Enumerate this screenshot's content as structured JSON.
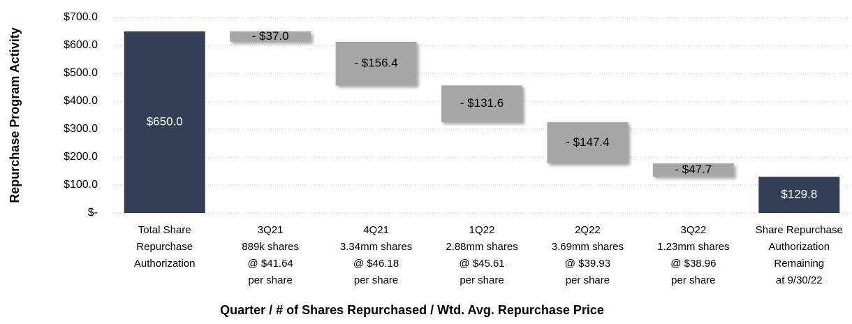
{
  "chart_data": {
    "type": "waterfall",
    "y_axis_label": "Repurchase Program Activity",
    "x_axis_label": "Quarter / # of Shares Repurchased / Wtd. Avg. Repurchase Price",
    "categories": [
      [
        "Total Share",
        "Repurchase",
        "Authorization"
      ],
      [
        "3Q21",
        "889k shares",
        "@ $41.64",
        "per share"
      ],
      [
        "4Q21",
        "3.34mm shares",
        "@ $46.18",
        "per share"
      ],
      [
        "1Q22",
        "2.88mm shares",
        "@ $45.61",
        "per share"
      ],
      [
        "2Q22",
        "3.69mm shares",
        "@ $39.93",
        "per share"
      ],
      [
        "3Q22",
        "1.23mm shares",
        "@ $38.96",
        "per share"
      ],
      [
        "Share Repurchase",
        "Authorization",
        "Remaining",
        "at 9/30/22"
      ]
    ],
    "values": [
      650.0,
      -37.0,
      -156.4,
      -131.6,
      -147.4,
      -47.7,
      129.8
    ],
    "value_labels": [
      "$650.0",
      "- $37.0",
      "- $156.4",
      "- $131.6",
      "- $147.4",
      "- $47.7",
      "$129.8"
    ],
    "colors": [
      "#333f55",
      "#a6a6a6",
      "#a6a6a6",
      "#a6a6a6",
      "#a6a6a6",
      "#a6a6a6",
      "#333f55"
    ],
    "ylim": [
      0,
      700
    ],
    "yticks": [
      {
        "value": 0,
        "label": "$-"
      },
      {
        "value": 100,
        "label": "$100.0"
      },
      {
        "value": 200,
        "label": "$200.0"
      },
      {
        "value": 300,
        "label": "$300.0"
      },
      {
        "value": 400,
        "label": "$400.0"
      },
      {
        "value": 500,
        "label": "$500.0"
      },
      {
        "value": 600,
        "label": "$600.0"
      },
      {
        "value": 700,
        "label": "$700.0"
      }
    ],
    "grid": true
  }
}
